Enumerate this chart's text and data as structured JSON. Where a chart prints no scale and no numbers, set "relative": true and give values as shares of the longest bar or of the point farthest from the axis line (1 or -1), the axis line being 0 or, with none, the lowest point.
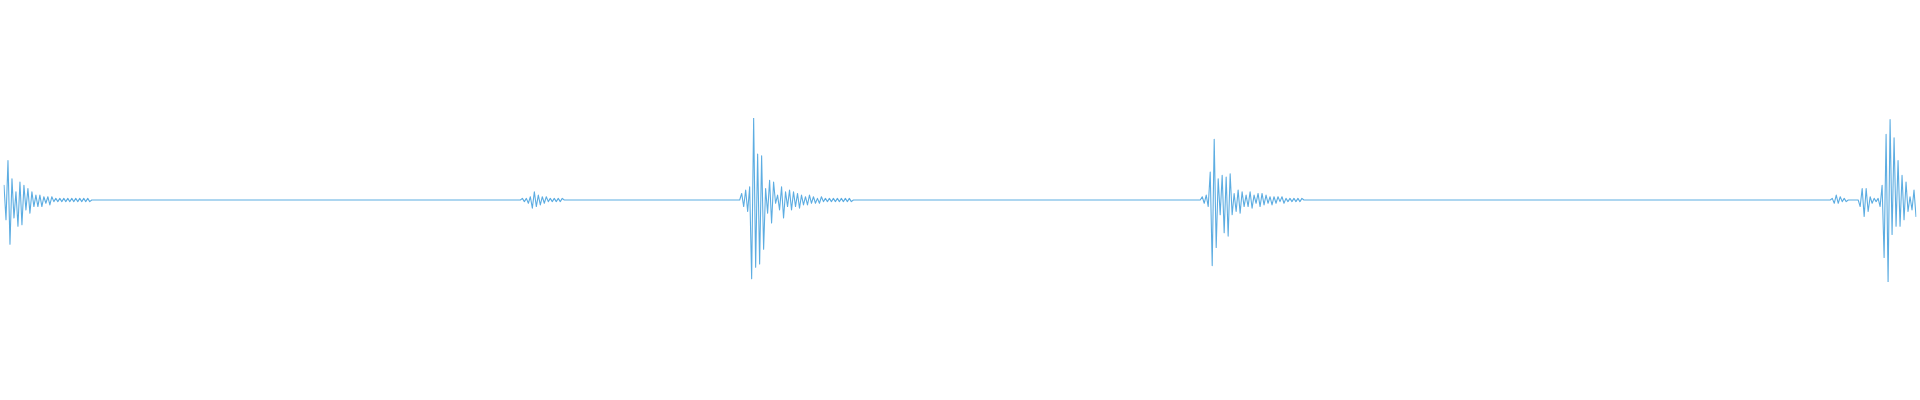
{
  "chart_data": {
    "type": "line",
    "relative": true,
    "categories": [
      null,
      null,
      null,
      null,
      null,
      null,
      null,
      null,
      null,
      null,
      null,
      null,
      null,
      null,
      null,
      null,
      null,
      null,
      null,
      null,
      null,
      null,
      null,
      null,
      null,
      null,
      null,
      null,
      null,
      null,
      null,
      null,
      null,
      null,
      null,
      null,
      null,
      null,
      null,
      null,
      null,
      null,
      null,
      null,
      null,
      null,
      null,
      null,
      null,
      null,
      null,
      null,
      null,
      null,
      null,
      null,
      null,
      null,
      null,
      null,
      null,
      null,
      null,
      null,
      null,
      null,
      null,
      null,
      null,
      null,
      null,
      null,
      null,
      null,
      null,
      null,
      null,
      null,
      null,
      null,
      null,
      null,
      null,
      null,
      null,
      null,
      null,
      null,
      null,
      null,
      null,
      null,
      null,
      null,
      null,
      null,
      null,
      null,
      null,
      null,
      null,
      null,
      null,
      null,
      null,
      null,
      null,
      null,
      null,
      null,
      null,
      null,
      null,
      null,
      null,
      null,
      null,
      null,
      null,
      null,
      null,
      null,
      null,
      null,
      null,
      null,
      null,
      null,
      null,
      null,
      null,
      null,
      null,
      null,
      null,
      null,
      null,
      null,
      null,
      null,
      null,
      null,
      null,
      null,
      null,
      null,
      null,
      null,
      null,
      null,
      null,
      null,
      null,
      null,
      null,
      null,
      null,
      null,
      null,
      null,
      null,
      null,
      null,
      null,
      null,
      null,
      null,
      null,
      null,
      null,
      null,
      null,
      null,
      null,
      null,
      null,
      null,
      null,
      null,
      null,
      null,
      null,
      null,
      null,
      null,
      null,
      null,
      null,
      null,
      null,
      null,
      null,
      null,
      null,
      null,
      null,
      null,
      null,
      null,
      null,
      null,
      null,
      null,
      null,
      null,
      null,
      null,
      null,
      null,
      null,
      null,
      null,
      null,
      null,
      null,
      null,
      null,
      null,
      null,
      null,
      null,
      null,
      null,
      null,
      null,
      null,
      null,
      null,
      null,
      null,
      null,
      null,
      null,
      null,
      null,
      null,
      null,
      null,
      null,
      null,
      null,
      null,
      null,
      null,
      null,
      null,
      null,
      null,
      null,
      null,
      null,
      null,
      null,
      null,
      null,
      null,
      null,
      null,
      null,
      null,
      null,
      null,
      null,
      null,
      null,
      null,
      null,
      null,
      null,
      null,
      null,
      null,
      null,
      null,
      null,
      null,
      null,
      null,
      null,
      null,
      null,
      null,
      null,
      null,
      null,
      null,
      null,
      null,
      null,
      null,
      null,
      null,
      null,
      null,
      null,
      null,
      null,
      null,
      null,
      null,
      null,
      null,
      null,
      null,
      null,
      null,
      null,
      null,
      null,
      null,
      null,
      null,
      null,
      null,
      null,
      null,
      null,
      null,
      null,
      null,
      null,
      null,
      null,
      null,
      null,
      null,
      null,
      null,
      null,
      null,
      null,
      null,
      null,
      null,
      null,
      null,
      null,
      null,
      null,
      null,
      null,
      null,
      null,
      null,
      null,
      null,
      null,
      null,
      null,
      null,
      null,
      null,
      null,
      null,
      null,
      null,
      null,
      null,
      null,
      null,
      null,
      null,
      null,
      null,
      null,
      null,
      null,
      null,
      null,
      null,
      null,
      null,
      null,
      null,
      null,
      null,
      null,
      null,
      null,
      null,
      null,
      null,
      null,
      null,
      null,
      null,
      null,
      null,
      null,
      null,
      null,
      null,
      null,
      null,
      null,
      null,
      null,
      null,
      null,
      null,
      null,
      null,
      null,
      null,
      null,
      null,
      null,
      null,
      null,
      null,
      null,
      null,
      null,
      null,
      null,
      null,
      null,
      null,
      null,
      null,
      null,
      null,
      null,
      null,
      null,
      null,
      null,
      null,
      null,
      null,
      null,
      null,
      null,
      null,
      null,
      null,
      null,
      null,
      null,
      null,
      null,
      null,
      null,
      null,
      null,
      null,
      null,
      null,
      null,
      null,
      null,
      null,
      null,
      null,
      null,
      null,
      null,
      null,
      null,
      null,
      null,
      null,
      null,
      null,
      null,
      null,
      null,
      null,
      null,
      null,
      null,
      null,
      null,
      null,
      null,
      null,
      null,
      null,
      null,
      null,
      null,
      null,
      null,
      null,
      null,
      null,
      null,
      null,
      null,
      null,
      null,
      null,
      null,
      null,
      null,
      null,
      null,
      null,
      null,
      null,
      null,
      null,
      null,
      null,
      null,
      null,
      null,
      null,
      null,
      null,
      null,
      null,
      null,
      null,
      null,
      null,
      null,
      null,
      null,
      null,
      null,
      null,
      null,
      null,
      null,
      null,
      null,
      null,
      null,
      null,
      null,
      null,
      null,
      null,
      null,
      null,
      null,
      null,
      null,
      null,
      null,
      null,
      null,
      null,
      null,
      null,
      null,
      null,
      null,
      null,
      null,
      null,
      null,
      null,
      null,
      null,
      null,
      null,
      null,
      null,
      null,
      null,
      null,
      null,
      null,
      null,
      null,
      null,
      null,
      null,
      null,
      null,
      null,
      null,
      null,
      null,
      null,
      null,
      null,
      null,
      null,
      null,
      null,
      null,
      null,
      null,
      null,
      null,
      null,
      null,
      null,
      null,
      null,
      null,
      null,
      null,
      null,
      null,
      null,
      null,
      null,
      null,
      null,
      null,
      null,
      null,
      null,
      null,
      null,
      null,
      null,
      null,
      null,
      null,
      null,
      null,
      null,
      null,
      null,
      null,
      null,
      null,
      null,
      null,
      null,
      null,
      null,
      null,
      null,
      null,
      null,
      null,
      null,
      null,
      null,
      null,
      null,
      null,
      null,
      null,
      null,
      null,
      null,
      null,
      null,
      null,
      null,
      null,
      null,
      null,
      null,
      null,
      null,
      null,
      null,
      null,
      null,
      null,
      null,
      null,
      null,
      null,
      null,
      null,
      null,
      null,
      null,
      null,
      null,
      null,
      null,
      null,
      null,
      null,
      null,
      null,
      null,
      null,
      null,
      null,
      null,
      null,
      null,
      null,
      null,
      null,
      null,
      null,
      null,
      null,
      null,
      null,
      null,
      null,
      null,
      null,
      null,
      null,
      null,
      null,
      null,
      null,
      null,
      null,
      null,
      null,
      null,
      null,
      null,
      null,
      null,
      null,
      null,
      null,
      null,
      null,
      null,
      null,
      null,
      null,
      null,
      null,
      null,
      null,
      null,
      null,
      null,
      null,
      null,
      null,
      null,
      null,
      null,
      null,
      null,
      null,
      null,
      null,
      null,
      null,
      null,
      null,
      null,
      null,
      null,
      null,
      null,
      null,
      null,
      null,
      null,
      null,
      null,
      null,
      null,
      null,
      null,
      null,
      null,
      null,
      null,
      null,
      null,
      null,
      null,
      null,
      null,
      null,
      null,
      null,
      null,
      null,
      null,
      null,
      null,
      null,
      null,
      null,
      null,
      null,
      null,
      null,
      null,
      null,
      null,
      null,
      null,
      null,
      null,
      null,
      null,
      null,
      null,
      null,
      null,
      null,
      null,
      null,
      null,
      null,
      null,
      null,
      null,
      null,
      null,
      null,
      null,
      null,
      null,
      null,
      null,
      null,
      null,
      null,
      null,
      null,
      null,
      null,
      null,
      null,
      null,
      null,
      null,
      null,
      null,
      null,
      null,
      null,
      null,
      null,
      null,
      null,
      null,
      null,
      null,
      null,
      null,
      null,
      null,
      null,
      null,
      null,
      null,
      null,
      null,
      null,
      null,
      null,
      null,
      null,
      null,
      null,
      null,
      null,
      null,
      null,
      null,
      null,
      null,
      null,
      null,
      null,
      null,
      null,
      null,
      null,
      null,
      null,
      null,
      null,
      null,
      null,
      null,
      null,
      null,
      null,
      null,
      null,
      null,
      null,
      null,
      null,
      null,
      null,
      null,
      null,
      null,
      null,
      null,
      null,
      null,
      null,
      null,
      null,
      null,
      null,
      null,
      null,
      null,
      null,
      null,
      null,
      null,
      null,
      null,
      null,
      null,
      null,
      null,
      null,
      null,
      null,
      null,
      null,
      null,
      null,
      null,
      null,
      null,
      null,
      null,
      null,
      null,
      null,
      null,
      null,
      null,
      null,
      null,
      null,
      null,
      null,
      null,
      null,
      null,
      null,
      null,
      null,
      null,
      null,
      null,
      null,
      null,
      null,
      null,
      null,
      null,
      null,
      null,
      null,
      null,
      null,
      null,
      null,
      null,
      null,
      null,
      null,
      null,
      null
    ],
    "series": [
      {
        "color": "#5dade2",
        "values": [
          0.59,
          0.38,
          0.74,
          0.23,
          0.63,
          0.39,
          0.55,
          0.34,
          0.61,
          0.35,
          0.59,
          0.44,
          0.57,
          0.42,
          0.55,
          0.46,
          0.53,
          0.46,
          0.53,
          0.46,
          0.52,
          0.48,
          0.52,
          0.47,
          0.52,
          0.49,
          0.51,
          0.49,
          0.51,
          0.49,
          0.51,
          0.49,
          0.51,
          0.49,
          0.51,
          0.49,
          0.51,
          0.49,
          0.51,
          0.49,
          0.51,
          0.49,
          0.51,
          0.49,
          0.5,
          0.5,
          0.5,
          0.5,
          0.5,
          0.5,
          0.5,
          0.5,
          0.5,
          0.5,
          0.5,
          0.5,
          0.5,
          0.5,
          0.5,
          0.5,
          0.5,
          0.5,
          0.5,
          0.5,
          0.5,
          0.5,
          0.5,
          0.5,
          0.5,
          0.5,
          0.5,
          0.5,
          0.5,
          0.5,
          0.5,
          0.5,
          0.5,
          0.5,
          0.5,
          0.5,
          0.5,
          0.5,
          0.5,
          0.5,
          0.5,
          0.5,
          0.5,
          0.5,
          0.5,
          0.5,
          0.5,
          0.5,
          0.5,
          0.5,
          0.5,
          0.5,
          0.5,
          0.5,
          0.5,
          0.5,
          0.5,
          0.5,
          0.5,
          0.5,
          0.5,
          0.5,
          0.5,
          0.5,
          0.5,
          0.5,
          0.5,
          0.5,
          0.5,
          0.5,
          0.5,
          0.5,
          0.5,
          0.5,
          0.5,
          0.5,
          0.5,
          0.5,
          0.5,
          0.5,
          0.5,
          0.5,
          0.5,
          0.5,
          0.5,
          0.5,
          0.5,
          0.5,
          0.5,
          0.5,
          0.5,
          0.5,
          0.5,
          0.5,
          0.5,
          0.5,
          0.5,
          0.5,
          0.5,
          0.5,
          0.5,
          0.5,
          0.5,
          0.5,
          0.5,
          0.5,
          0.5,
          0.5,
          0.5,
          0.5,
          0.5,
          0.5,
          0.5,
          0.5,
          0.5,
          0.5,
          0.5,
          0.5,
          0.5,
          0.5,
          0.5,
          0.5,
          0.5,
          0.5,
          0.5,
          0.5,
          0.5,
          0.5,
          0.5,
          0.5,
          0.5,
          0.5,
          0.5,
          0.5,
          0.5,
          0.5,
          0.5,
          0.5,
          0.5,
          0.5,
          0.5,
          0.5,
          0.5,
          0.5,
          0.5,
          0.5,
          0.5,
          0.5,
          0.5,
          0.5,
          0.5,
          0.5,
          0.5,
          0.5,
          0.5,
          0.5,
          0.5,
          0.5,
          0.5,
          0.5,
          0.5,
          0.5,
          0.5,
          0.5,
          0.5,
          0.5,
          0.5,
          0.5,
          0.5,
          0.5,
          0.5,
          0.5,
          0.5,
          0.5,
          0.5,
          0.5,
          0.5,
          0.5,
          0.5,
          0.5,
          0.5,
          0.5,
          0.5,
          0.5,
          0.5,
          0.5,
          0.5,
          0.5,
          0.5,
          0.5,
          0.5,
          0.5,
          0.5,
          0.5,
          0.5,
          0.5,
          0.5,
          0.5,
          0.5,
          0.5,
          0.5,
          0.5,
          0.5,
          0.5,
          0.5,
          0.5,
          0.5,
          0.5,
          0.5,
          0.5,
          0.5,
          0.5,
          0.5,
          0.5,
          0.5,
          0.5,
          0.51,
          0.49,
          0.51,
          0.48,
          0.52,
          0.45,
          0.55,
          0.46,
          0.53,
          0.47,
          0.52,
          0.48,
          0.52,
          0.49,
          0.51,
          0.49,
          0.51,
          0.49,
          0.51,
          0.49,
          0.51,
          0.5,
          0.5,
          0.5,
          0.5,
          0.5,
          0.5,
          0.5,
          0.5,
          0.5,
          0.5,
          0.5,
          0.5,
          0.5,
          0.5,
          0.5,
          0.5,
          0.5,
          0.5,
          0.5,
          0.5,
          0.5,
          0.5,
          0.5,
          0.5,
          0.5,
          0.5,
          0.5,
          0.5,
          0.5,
          0.5,
          0.5,
          0.5,
          0.5,
          0.5,
          0.5,
          0.5,
          0.5,
          0.5,
          0.5,
          0.5,
          0.5,
          0.5,
          0.5,
          0.5,
          0.5,
          0.5,
          0.5,
          0.5,
          0.5,
          0.5,
          0.5,
          0.5,
          0.5,
          0.5,
          0.5,
          0.5,
          0.5,
          0.5,
          0.5,
          0.5,
          0.5,
          0.5,
          0.5,
          0.5,
          0.5,
          0.5,
          0.5,
          0.5,
          0.5,
          0.5,
          0.5,
          0.5,
          0.5,
          0.5,
          0.5,
          0.5,
          0.5,
          0.5,
          0.5,
          0.5,
          0.5,
          0.5,
          0.5,
          0.5,
          0.5,
          0.5,
          0.5,
          0.5,
          0.5,
          0.54,
          0.46,
          0.56,
          0.43,
          0.58,
          0.02,
          1,
          0.09,
          0.78,
          0.11,
          0.77,
          0.2,
          0.57,
          0.42,
          0.62,
          0.36,
          0.61,
          0.48,
          0.53,
          0.44,
          0.58,
          0.39,
          0.55,
          0.46,
          0.56,
          0.44,
          0.55,
          0.46,
          0.54,
          0.45,
          0.53,
          0.47,
          0.52,
          0.47,
          0.53,
          0.48,
          0.52,
          0.48,
          0.51,
          0.48,
          0.52,
          0.49,
          0.51,
          0.49,
          0.51,
          0.49,
          0.51,
          0.49,
          0.51,
          0.49,
          0.51,
          0.49,
          0.51,
          0.49,
          0.51,
          0.49,
          0.5,
          0.5,
          0.5,
          0.5,
          0.5,
          0.5,
          0.5,
          0.5,
          0.5,
          0.5,
          0.5,
          0.5,
          0.5,
          0.5,
          0.5,
          0.5,
          0.5,
          0.5,
          0.5,
          0.5,
          0.5,
          0.5,
          0.5,
          0.5,
          0.5,
          0.5,
          0.5,
          0.5,
          0.5,
          0.5,
          0.5,
          0.5,
          0.5,
          0.5,
          0.5,
          0.5,
          0.5,
          0.5,
          0.5,
          0.5,
          0.5,
          0.5,
          0.5,
          0.5,
          0.5,
          0.5,
          0.5,
          0.5,
          0.5,
          0.5,
          0.5,
          0.5,
          0.5,
          0.5,
          0.5,
          0.5,
          0.5,
          0.5,
          0.5,
          0.5,
          0.5,
          0.5,
          0.5,
          0.5,
          0.5,
          0.5,
          0.5,
          0.5,
          0.5,
          0.5,
          0.5,
          0.5,
          0.5,
          0.5,
          0.5,
          0.5,
          0.5,
          0.5,
          0.5,
          0.5,
          0.5,
          0.5,
          0.5,
          0.5,
          0.5,
          0.5,
          0.5,
          0.5,
          0.5,
          0.5,
          0.5,
          0.5,
          0.5,
          0.5,
          0.5,
          0.5,
          0.5,
          0.5,
          0.5,
          0.5,
          0.5,
          0.5,
          0.5,
          0.5,
          0.5,
          0.5,
          0.5,
          0.5,
          0.5,
          0.5,
          0.5,
          0.5,
          0.5,
          0.5,
          0.5,
          0.5,
          0.5,
          0.5,
          0.5,
          0.5,
          0.5,
          0.5,
          0.5,
          0.5,
          0.5,
          0.5,
          0.5,
          0.5,
          0.5,
          0.5,
          0.5,
          0.5,
          0.5,
          0.5,
          0.5,
          0.5,
          0.5,
          0.5,
          0.5,
          0.5,
          0.5,
          0.5,
          0.5,
          0.5,
          0.5,
          0.5,
          0.5,
          0.5,
          0.5,
          0.5,
          0.5,
          0.5,
          0.5,
          0.5,
          0.5,
          0.5,
          0.5,
          0.5,
          0.5,
          0.5,
          0.5,
          0.5,
          0.5,
          0.5,
          0.5,
          0.5,
          0.5,
          0.5,
          0.5,
          0.5,
          0.5,
          0.5,
          0.5,
          0.5,
          0.5,
          0.52,
          0.48,
          0.53,
          0.46,
          0.67,
          0.1,
          0.87,
          0.21,
          0.63,
          0.41,
          0.65,
          0.3,
          0.64,
          0.28,
          0.66,
          0.41,
          0.54,
          0.43,
          0.56,
          0.42,
          0.55,
          0.46,
          0.53,
          0.46,
          0.55,
          0.45,
          0.53,
          0.48,
          0.54,
          0.46,
          0.54,
          0.47,
          0.53,
          0.48,
          0.52,
          0.47,
          0.52,
          0.48,
          0.52,
          0.49,
          0.52,
          0.48,
          0.51,
          0.49,
          0.51,
          0.49,
          0.51,
          0.49,
          0.51,
          0.49,
          0.51,
          0.5,
          0.5,
          0.5,
          0.5,
          0.5,
          0.5,
          0.5,
          0.5,
          0.5,
          0.5,
          0.5,
          0.5,
          0.5,
          0.5,
          0.5,
          0.5,
          0.5,
          0.5,
          0.5,
          0.5,
          0.5,
          0.5,
          0.5,
          0.5,
          0.5,
          0.5,
          0.5,
          0.5,
          0.5,
          0.5,
          0.5,
          0.5,
          0.5,
          0.5,
          0.5,
          0.5,
          0.5,
          0.5,
          0.5,
          0.5,
          0.5,
          0.5,
          0.5,
          0.5,
          0.5,
          0.5,
          0.5,
          0.5,
          0.5,
          0.5,
          0.5,
          0.5,
          0.5,
          0.5,
          0.5,
          0.5,
          0.5,
          0.5,
          0.5,
          0.5,
          0.5,
          0.5,
          0.5,
          0.5,
          0.5,
          0.5,
          0.5,
          0.5,
          0.5,
          0.5,
          0.5,
          0.5,
          0.5,
          0.5,
          0.5,
          0.5,
          0.5,
          0.5,
          0.5,
          0.5,
          0.5,
          0.5,
          0.5,
          0.5,
          0.5,
          0.5,
          0.5,
          0.5,
          0.5,
          0.5,
          0.5,
          0.5,
          0.5,
          0.5,
          0.5,
          0.5,
          0.5,
          0.5,
          0.5,
          0.5,
          0.5,
          0.5,
          0.5,
          0.5,
          0.5,
          0.5,
          0.5,
          0.5,
          0.5,
          0.5,
          0.5,
          0.5,
          0.5,
          0.5,
          0.5,
          0.5,
          0.5,
          0.5,
          0.5,
          0.5,
          0.5,
          0.5,
          0.5,
          0.5,
          0.5,
          0.5,
          0.5,
          0.5,
          0.5,
          0.5,
          0.5,
          0.5,
          0.5,
          0.5,
          0.5,
          0.5,
          0.5,
          0.5,
          0.5,
          0.5,
          0.5,
          0.5,
          0.5,
          0.5,
          0.5,
          0.5,
          0.5,
          0.5,
          0.5,
          0.5,
          0.5,
          0.5,
          0.5,
          0.5,
          0.5,
          0.5,
          0.5,
          0.5,
          0.5,
          0.5,
          0.5,
          0.5,
          0.5,
          0.5,
          0.5,
          0.5,
          0.5,
          0.5,
          0.5,
          0.5,
          0.5,
          0.5,
          0.5,
          0.5,
          0.5,
          0.5,
          0.5,
          0.5,
          0.5,
          0.5,
          0.5,
          0.5,
          0.5,
          0.5,
          0.5,
          0.5,
          0.5,
          0.5,
          0.5,
          0.5,
          0.5,
          0.5,
          0.5,
          0.5,
          0.5,
          0.5,
          0.5,
          0.5,
          0.5,
          0.5,
          0.5,
          0.5,
          0.5,
          0.5,
          0.5,
          0.5,
          0.5,
          0.5,
          0.5,
          0.5,
          0.5,
          0.5,
          0.5,
          0.5,
          0.5,
          0.5,
          0.5,
          0.5,
          0.5,
          0.5,
          0.5,
          0.5,
          0.5,
          0.5,
          0.5,
          0.5,
          0.5,
          0.5,
          0.5,
          0.5,
          0.5,
          0.5,
          0.5,
          0.5,
          0.5,
          0.5,
          0.5,
          0.5,
          0.5,
          0.5,
          0.5,
          0.5,
          0.5,
          0.5,
          0.5,
          0.5,
          0.5,
          0.5,
          0.5,
          0.5,
          0.5,
          0.5,
          0.5,
          0.5,
          0.5,
          0.5,
          0.5,
          0.5,
          0.5,
          0.5,
          0.5,
          0.5,
          0.5,
          0.5,
          0.5,
          0.51,
          0.48,
          0.53,
          0.48,
          0.52,
          0.49,
          0.51,
          0.49,
          0.5,
          0.5,
          0.5,
          0.5,
          0.5,
          0.5,
          0.46,
          0.57,
          0.4,
          0.57,
          0.43,
          0.52,
          0.48,
          0.51,
          0.49,
          0.51,
          0.46,
          0.59,
          0.15,
          0.9,
          0,
          0.99,
          0.29,
          0.88,
          0.34,
          0.74,
          0.34,
          0.65,
          0.38,
          0.61,
          0.43,
          0.52,
          0.44,
          0.56,
          0.4
        ]
      }
    ]
  }
}
